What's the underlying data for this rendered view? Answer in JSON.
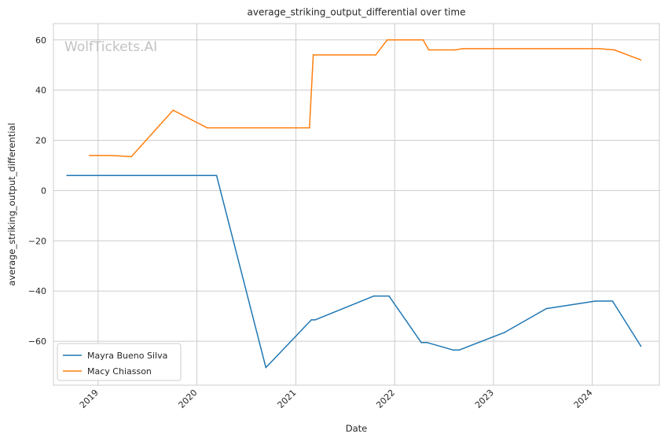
{
  "chart_data": {
    "type": "line",
    "title": "average_striking_output_differential over time",
    "xlabel": "Date",
    "ylabel": "average_striking_output_differential",
    "watermark": "WolfTickets.AI",
    "xlim": [
      "2018-07-20",
      "2024-09-05"
    ],
    "ylim": [
      -77.5,
      66.5
    ],
    "x_ticks": [
      "2019-01-01",
      "2020-01-01",
      "2021-01-01",
      "2022-01-01",
      "2023-01-01",
      "2024-01-01"
    ],
    "x_tick_labels": [
      "2019",
      "2020",
      "2021",
      "2022",
      "2023",
      "2024"
    ],
    "y_ticks": [
      -60,
      -40,
      -20,
      0,
      20,
      40,
      60
    ],
    "y_tick_labels": [
      "−60",
      "−40",
      "−20",
      "0",
      "20",
      "40",
      "60"
    ],
    "grid": true,
    "legend_position": "bottom-left",
    "series": [
      {
        "name": "Mayra Bueno Silva",
        "color": "#1f77b4",
        "points": [
          [
            "2018-09-08",
            6
          ],
          [
            "2020-03-14",
            6
          ],
          [
            "2020-09-12",
            -70.5
          ],
          [
            "2021-02-27",
            -51.5
          ],
          [
            "2021-03-13",
            -51.5
          ],
          [
            "2021-10-16",
            -42
          ],
          [
            "2021-12-11",
            -42
          ],
          [
            "2022-04-09",
            -60.5
          ],
          [
            "2022-04-30",
            -60.5
          ],
          [
            "2022-08-06",
            -63.5
          ],
          [
            "2022-08-27",
            -63.5
          ],
          [
            "2023-02-11",
            -56.5
          ],
          [
            "2023-07-15",
            -47
          ],
          [
            "2024-01-13",
            -44
          ],
          [
            "2024-03-16",
            -44
          ],
          [
            "2024-06-29",
            -62
          ]
        ]
      },
      {
        "name": "Macy Chiasson",
        "color": "#ff7f0e",
        "points": [
          [
            "2018-11-30",
            14
          ],
          [
            "2019-02-17",
            14
          ],
          [
            "2019-05-04",
            13.5
          ],
          [
            "2019-10-05",
            32
          ],
          [
            "2020-02-08",
            25
          ],
          [
            "2021-02-20",
            25
          ],
          [
            "2021-03-06",
            54
          ],
          [
            "2021-10-23",
            54
          ],
          [
            "2021-12-04",
            60
          ],
          [
            "2022-04-16",
            60
          ],
          [
            "2022-05-07",
            56
          ],
          [
            "2022-08-13",
            56
          ],
          [
            "2022-09-10",
            56.5
          ],
          [
            "2024-01-27",
            56.5
          ],
          [
            "2024-03-23",
            56
          ],
          [
            "2024-06-29",
            52
          ]
        ]
      }
    ]
  }
}
